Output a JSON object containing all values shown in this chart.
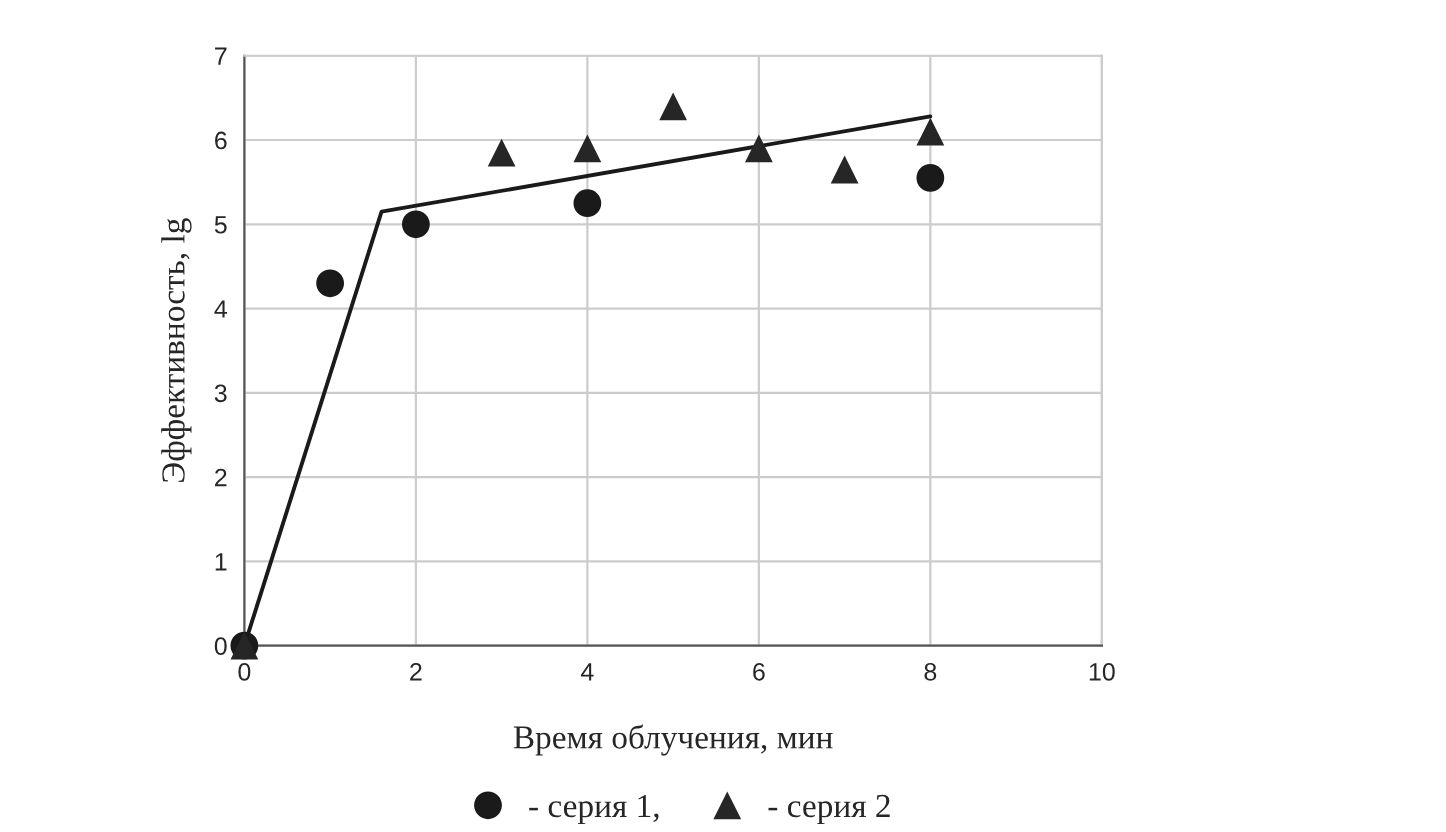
{
  "chart_data": {
    "type": "scatter",
    "xlabel": "Время облучения, мин",
    "ylabel": "Эффективность, lg",
    "xlim": [
      0,
      10
    ],
    "xticks": [
      0,
      2,
      4,
      6,
      8,
      10
    ],
    "ylim": [
      0,
      7
    ],
    "yticks": [
      0,
      1,
      2,
      3,
      4,
      5,
      6,
      7
    ],
    "grid": true,
    "legend": "bottom",
    "series": [
      {
        "name": "- серия 1,",
        "marker": "circle",
        "color": "#1a1a1a",
        "x": [
          0,
          1,
          2,
          4,
          8
        ],
        "values": [
          0,
          4.3,
          5.0,
          5.25,
          5.55
        ]
      },
      {
        "name": "- серия 2",
        "marker": "triangle",
        "color": "#262626",
        "x": [
          0,
          3,
          4,
          5,
          6,
          7,
          8
        ],
        "values": [
          0,
          5.85,
          5.9,
          6.4,
          5.9,
          5.65,
          6.1
        ]
      },
      {
        "type": "line",
        "marker": "none",
        "color": "#1a1a1a",
        "x": [
          0,
          1.6,
          8
        ],
        "values": [
          0,
          5.15,
          6.28
        ]
      }
    ]
  }
}
